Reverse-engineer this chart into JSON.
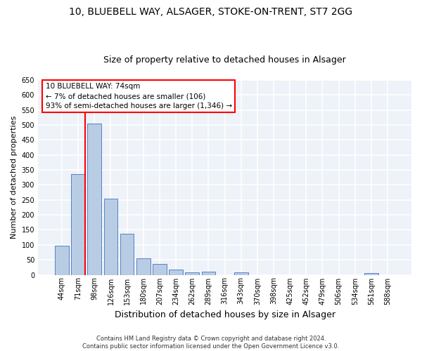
{
  "title1": "10, BLUEBELL WAY, ALSAGER, STOKE-ON-TRENT, ST7 2GG",
  "title2": "Size of property relative to detached houses in Alsager",
  "xlabel": "Distribution of detached houses by size in Alsager",
  "ylabel": "Number of detached properties",
  "categories": [
    "44sqm",
    "71sqm",
    "98sqm",
    "126sqm",
    "153sqm",
    "180sqm",
    "207sqm",
    "234sqm",
    "262sqm",
    "289sqm",
    "316sqm",
    "343sqm",
    "370sqm",
    "398sqm",
    "425sqm",
    "452sqm",
    "479sqm",
    "506sqm",
    "534sqm",
    "561sqm",
    "588sqm"
  ],
  "values": [
    98,
    335,
    505,
    253,
    138,
    55,
    37,
    18,
    8,
    10,
    0,
    8,
    0,
    0,
    0,
    0,
    0,
    0,
    0,
    5,
    0
  ],
  "bar_color": "#b8cce4",
  "bar_edge_color": "#4472c4",
  "ylim": [
    0,
    650
  ],
  "yticks": [
    0,
    50,
    100,
    150,
    200,
    250,
    300,
    350,
    400,
    450,
    500,
    550,
    600,
    650
  ],
  "annotation_line1": "10 BLUEBELL WAY: 74sqm",
  "annotation_line2": "← 7% of detached houses are smaller (106)",
  "annotation_line3": "93% of semi-detached houses are larger (1,346) →",
  "footer1": "Contains HM Land Registry data © Crown copyright and database right 2024.",
  "footer2": "Contains public sector information licensed under the Open Government Licence v3.0.",
  "bg_color": "#eef2f9",
  "grid_color": "white",
  "title1_fontsize": 10,
  "title2_fontsize": 9,
  "xlabel_fontsize": 9,
  "ylabel_fontsize": 8,
  "tick_fontsize": 7,
  "footer_fontsize": 6,
  "ann_fontsize": 7.5
}
